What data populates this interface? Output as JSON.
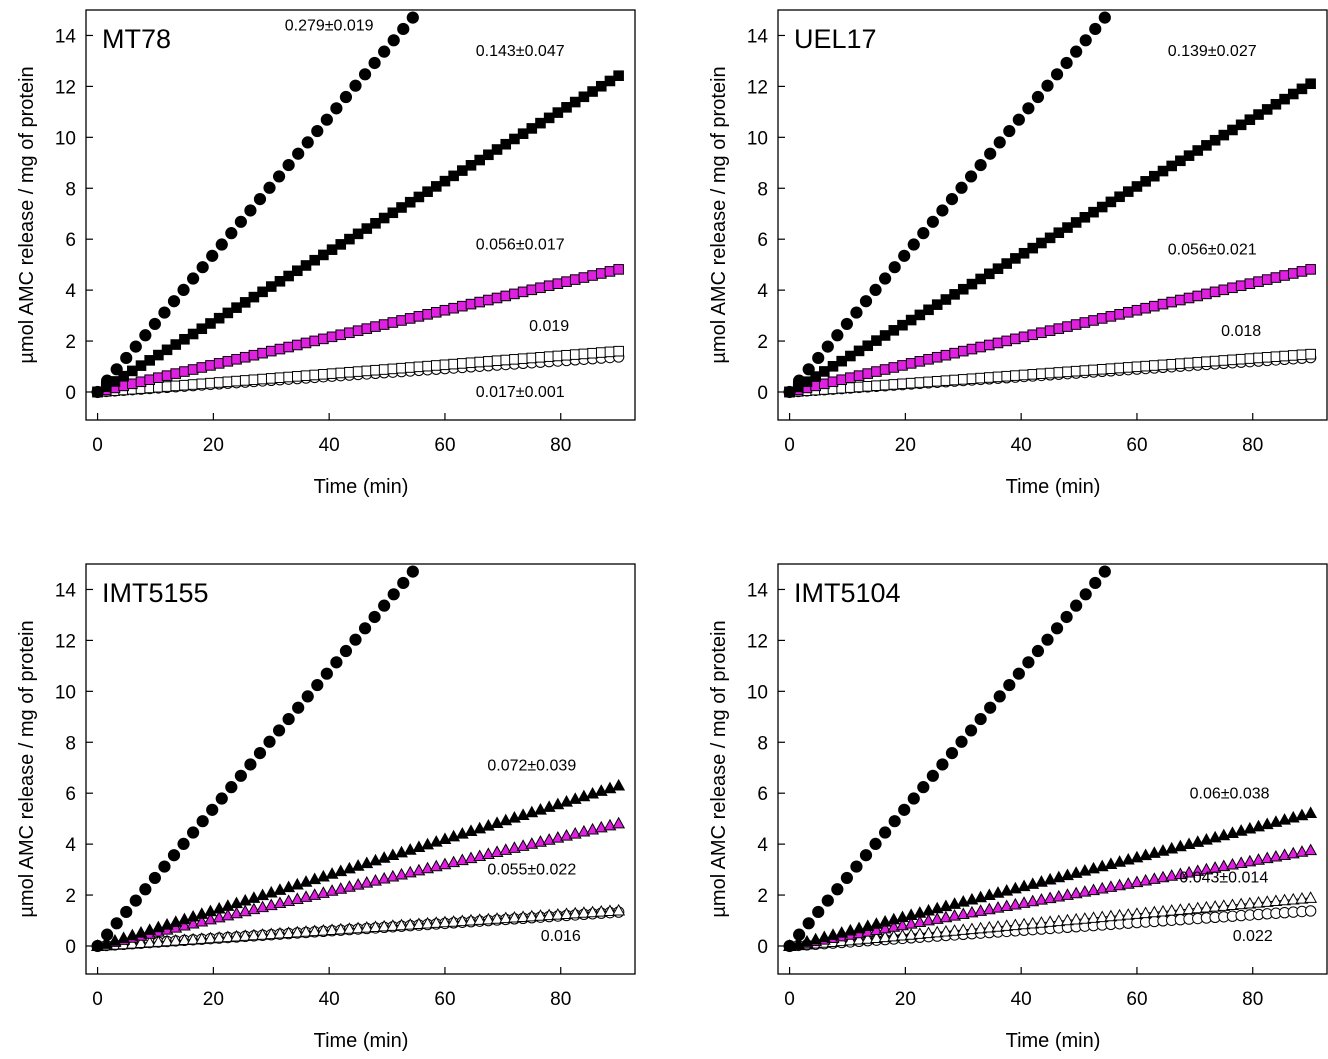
{
  "chart_data": [
    {
      "type": "scatter",
      "title": "MT78",
      "xlabel": "Time (min)",
      "ylabel": "µmol AMC release / mg of protein",
      "xlim": [
        0,
        90
      ],
      "ylim": [
        0,
        15
      ],
      "xticks": [
        0,
        20,
        40,
        60,
        80
      ],
      "yticks": [
        0,
        2,
        4,
        6,
        8,
        10,
        12,
        14
      ],
      "grid": false,
      "series": [
        {
          "marker": "circle",
          "fill": "#000000",
          "slope": 0.27,
          "x_end": 55.5
        },
        {
          "marker": "square",
          "fill": "#000000",
          "slope": 0.138,
          "x_end": 90
        },
        {
          "marker": "square",
          "fill": "#e020e0",
          "slope": 0.0535,
          "x_end": 90
        },
        {
          "marker": "square",
          "fill": "#ffffff",
          "slope": 0.0178,
          "x_end": 90
        },
        {
          "marker": "circle",
          "fill": "#ffffff",
          "slope": 0.0153,
          "x_end": 90
        }
      ],
      "annotations": [
        {
          "text": "0.279±0.019",
          "x": 40,
          "y": 14.2
        },
        {
          "text": "0.143±0.047",
          "x": 73,
          "y": 13.2
        },
        {
          "text": "0.056±0.017",
          "x": 73,
          "y": 5.6
        },
        {
          "text": "0.019",
          "x": 78,
          "y": 2.4
        },
        {
          "text": "0.017±0.001",
          "x": 73,
          "y": -0.2
        }
      ]
    },
    {
      "type": "scatter",
      "title": "UEL17",
      "xlabel": "Time (min)",
      "ylabel": "µmol AMC release / mg of protein",
      "xlim": [
        0,
        90
      ],
      "ylim": [
        0,
        15
      ],
      "xticks": [
        0,
        20,
        40,
        60,
        80
      ],
      "yticks": [
        0,
        2,
        4,
        6,
        8,
        10,
        12,
        14
      ],
      "grid": false,
      "series": [
        {
          "marker": "circle",
          "fill": "#000000",
          "slope": 0.27,
          "x_end": 55.5
        },
        {
          "marker": "square",
          "fill": "#000000",
          "slope": 0.1345,
          "x_end": 90
        },
        {
          "marker": "square",
          "fill": "#e020e0",
          "slope": 0.0535,
          "x_end": 90
        },
        {
          "marker": "square",
          "fill": "#ffffff",
          "slope": 0.0165,
          "x_end": 90
        },
        {
          "marker": "circle",
          "fill": "#ffffff",
          "slope": 0.015,
          "x_end": 90
        }
      ],
      "annotations": [
        {
          "text": "0.139±0.027",
          "x": 73,
          "y": 13.2
        },
        {
          "text": "0.056±0.021",
          "x": 73,
          "y": 5.4
        },
        {
          "text": "0.018",
          "x": 78,
          "y": 2.2
        }
      ]
    },
    {
      "type": "scatter",
      "title": "IMT5155",
      "xlabel": "Time (min)",
      "ylabel": "µmol AMC release / mg of protein",
      "xlim": [
        0,
        90
      ],
      "ylim": [
        0,
        15
      ],
      "xticks": [
        0,
        20,
        40,
        60,
        80
      ],
      "yticks": [
        0,
        2,
        4,
        6,
        8,
        10,
        12,
        14
      ],
      "grid": false,
      "series": [
        {
          "marker": "circle",
          "fill": "#000000",
          "slope": 0.27,
          "x_end": 55.5
        },
        {
          "marker": "triangle",
          "fill": "#000000",
          "slope": 0.07,
          "x_end": 90
        },
        {
          "marker": "triangle",
          "fill": "#e020e0",
          "slope": 0.0535,
          "x_end": 90
        },
        {
          "marker": "triangle",
          "fill": "#ffffff",
          "slope": 0.0155,
          "x_end": 90
        },
        {
          "marker": "circle",
          "fill": "#ffffff",
          "slope": 0.0148,
          "x_end": 90
        }
      ],
      "annotations": [
        {
          "text": "0.072±0.039",
          "x": 75,
          "y": 6.9
        },
        {
          "text": "0.055±0.022",
          "x": 75,
          "y": 2.8
        },
        {
          "text": "0.016",
          "x": 80,
          "y": 0.2
        }
      ]
    },
    {
      "type": "scatter",
      "title": "IMT5104",
      "xlabel": "Time (min)",
      "ylabel": "µmol AMC release / mg of protein",
      "xlim": [
        0,
        90
      ],
      "ylim": [
        0,
        15
      ],
      "xticks": [
        0,
        20,
        40,
        60,
        80
      ],
      "yticks": [
        0,
        2,
        4,
        6,
        8,
        10,
        12,
        14
      ],
      "grid": false,
      "series": [
        {
          "marker": "circle",
          "fill": "#000000",
          "slope": 0.27,
          "x_end": 55.5
        },
        {
          "marker": "triangle",
          "fill": "#000000",
          "slope": 0.058,
          "x_end": 90
        },
        {
          "marker": "triangle",
          "fill": "#e020e0",
          "slope": 0.0418,
          "x_end": 90
        },
        {
          "marker": "triangle",
          "fill": "#ffffff",
          "slope": 0.021,
          "x_end": 90
        },
        {
          "marker": "circle",
          "fill": "#ffffff",
          "slope": 0.0153,
          "x_end": 90
        }
      ],
      "annotations": [
        {
          "text": "0.06±0.038",
          "x": 76,
          "y": 5.8
        },
        {
          "text": "0.043±0.014",
          "x": 75,
          "y": 2.5
        },
        {
          "text": "0.022",
          "x": 80,
          "y": 0.2
        }
      ]
    }
  ]
}
